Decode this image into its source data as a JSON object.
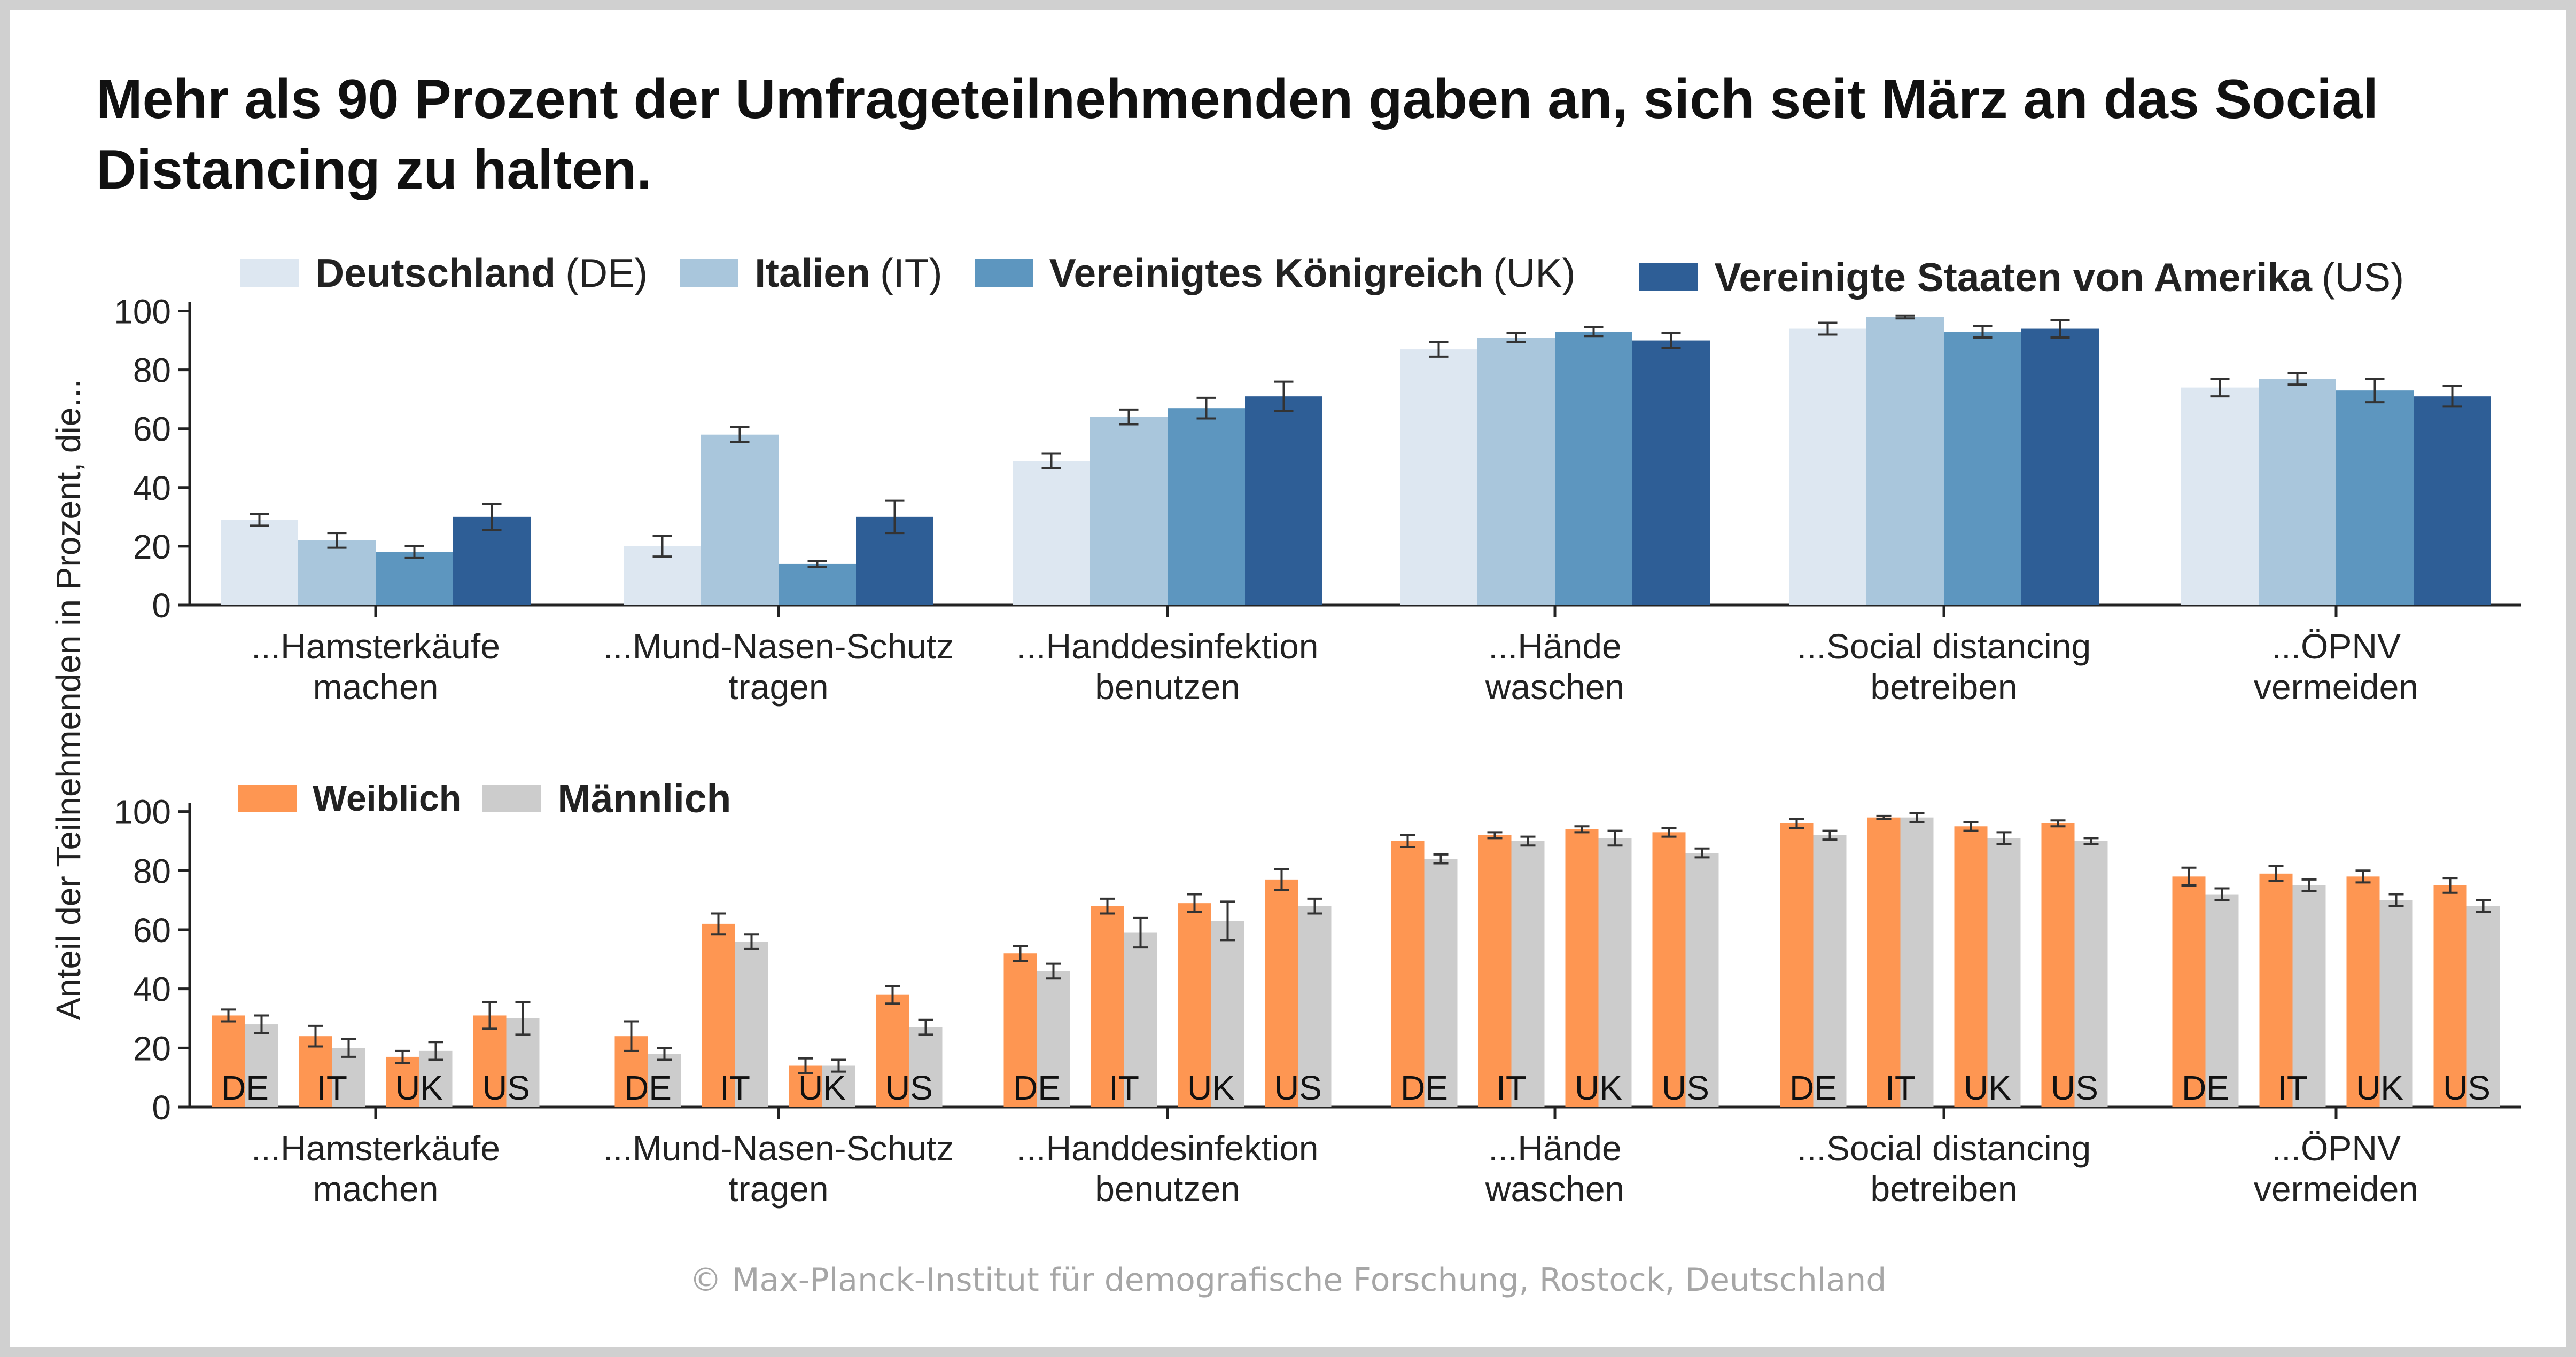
{
  "title": "Mehr als 90 Prozent der Umfrageteilnehmenden gaben an, sich seit März an das Social Distancing zu halten.",
  "copyright": "© Max-Planck-Institut für demografische Forschung, Rostock, Deutschland",
  "y_axis_label": "Anteil der Teilnehmenden in Prozent, die...",
  "legend_countries": [
    {
      "name": "Deutschland",
      "code": "(DE)",
      "color": "#dde7f1"
    },
    {
      "name": "Italien",
      "code": "(IT)",
      "color": "#a9c6dc"
    },
    {
      "name": "Vereinigtes Königreich",
      "code": "(UK)",
      "color": "#5d96bf"
    },
    {
      "name": "Vereinigte Staaten von Amerika",
      "code": "(US)",
      "color": "#2e5e96"
    }
  ],
  "legend_gender": [
    {
      "name": "Weiblich",
      "color": "#fe9652"
    },
    {
      "name": "Männlich",
      "color": "#cccccc"
    }
  ],
  "chart_data": [
    {
      "type": "bar",
      "categories": [
        "...Hamsterkäufe\nmachen",
        "...Mund-Nasen-Schutz\ntragen",
        "...Handdesinfektion\nbenutzen",
        "...Hände\nwaschen",
        "...Social distancing\nbetreiben",
        "...ÖPNV\nvermeiden"
      ],
      "ylabel": "Anteil der Teilnehmenden in Prozent, die...",
      "ylim": [
        0,
        100
      ],
      "yticks": [
        0,
        20,
        40,
        60,
        80,
        100
      ],
      "series": [
        {
          "name": "Deutschland",
          "code": "DE",
          "color": "#dde7f1",
          "values": [
            29,
            20,
            49,
            87,
            94,
            74
          ],
          "err": [
            2,
            3.5,
            2.5,
            2.5,
            2,
            3
          ]
        },
        {
          "name": "Italien",
          "code": "IT",
          "color": "#a9c6dc",
          "values": [
            22,
            58,
            64,
            91,
            98,
            77
          ],
          "err": [
            2.5,
            2.5,
            2.5,
            1.5,
            0.5,
            2
          ]
        },
        {
          "name": "Vereinigtes Königreich",
          "code": "UK",
          "color": "#5d96bf",
          "values": [
            18,
            14,
            67,
            93,
            93,
            73
          ],
          "err": [
            2,
            1,
            3.5,
            1.5,
            2,
            4
          ]
        },
        {
          "name": "Vereinigte Staaten von Amerika",
          "code": "US",
          "color": "#2e5e96",
          "values": [
            30,
            30,
            71,
            90,
            94,
            71
          ],
          "err": [
            4.5,
            5.5,
            5,
            2.5,
            3,
            3.5
          ]
        }
      ]
    },
    {
      "type": "bar",
      "categories": [
        "...Hamsterkäufe\nmachen",
        "...Mund-Nasen-Schutz\ntragen",
        "...Handdesinfektion\nbenutzen",
        "...Hände\nwaschen",
        "...Social distancing\nbetreiben",
        "...ÖPNV\nvermeiden"
      ],
      "group_labels": [
        "DE",
        "IT",
        "UK",
        "US"
      ],
      "ylabel": "Anteil der Teilnehmenden in Prozent, die...",
      "ylim": [
        0,
        100
      ],
      "yticks": [
        0,
        20,
        40,
        60,
        80,
        100
      ],
      "series": [
        {
          "name": "Weiblich",
          "color": "#fe9652",
          "values": [
            [
              31,
              24,
              17,
              31
            ],
            [
              24,
              62,
              14,
              38
            ],
            [
              52,
              68,
              69,
              77
            ],
            [
              90,
              92,
              94,
              93
            ],
            [
              96,
              98,
              95,
              96
            ],
            [
              78,
              79,
              78,
              75
            ]
          ],
          "err": [
            [
              2,
              3.5,
              2,
              4.5
            ],
            [
              5,
              3.5,
              2.5,
              3
            ],
            [
              2.5,
              2.5,
              3,
              3.5
            ],
            [
              2,
              1,
              1,
              1.5
            ],
            [
              1.5,
              0.5,
              1.5,
              1
            ],
            [
              3,
              2.5,
              2,
              2.5
            ]
          ]
        },
        {
          "name": "Männlich",
          "color": "#cccccc",
          "values": [
            [
              28,
              20,
              19,
              30
            ],
            [
              18,
              56,
              14,
              27
            ],
            [
              46,
              59,
              63,
              68
            ],
            [
              84,
              90,
              91,
              86
            ],
            [
              92,
              98,
              91,
              90
            ],
            [
              72,
              75,
              70,
              68
            ]
          ],
          "err": [
            [
              3,
              3,
              3,
              5.5
            ],
            [
              2,
              2.5,
              2,
              2.5
            ],
            [
              2.5,
              5,
              6.5,
              2.5
            ],
            [
              1.5,
              1.5,
              2.5,
              1.5
            ],
            [
              1.5,
              1.5,
              2,
              1
            ],
            [
              2,
              2,
              2,
              2
            ]
          ]
        }
      ]
    }
  ]
}
